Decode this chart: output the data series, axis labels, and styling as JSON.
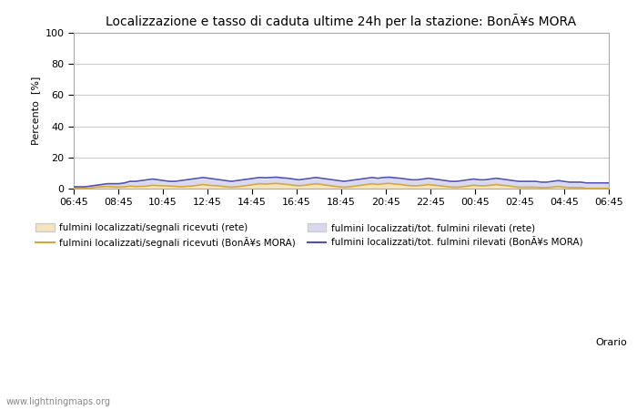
{
  "title": "Localizzazione e tasso di caduta ultime 24h per la stazione: BonÃ¥s MORA",
  "ylabel": "Percento  [%]",
  "xlabel": "Orario",
  "watermark": "www.lightningmaps.org",
  "xtick_labels": [
    "06:45",
    "08:45",
    "10:45",
    "12:45",
    "14:45",
    "16:45",
    "18:45",
    "20:45",
    "22:45",
    "00:45",
    "02:45",
    "04:45",
    "06:45"
  ],
  "ytick_labels": [
    "0",
    "20",
    "40",
    "60",
    "80",
    "100"
  ],
  "ylim": [
    0,
    100
  ],
  "legend": [
    {
      "label": "fulmini localizzati/segnali ricevuti (rete)",
      "color": "#f5e4be",
      "type": "patch"
    },
    {
      "label": "fulmini localizzati/segnali ricevuti (BonÃ¥s MORA)",
      "color": "#d4a840",
      "type": "line"
    },
    {
      "label": "fulmini localizzati/tot. fulmini rilevati (rete)",
      "color": "#d8d8f0",
      "type": "patch"
    },
    {
      "label": "fulmini localizzati/tot. fulmini rilevati (BonÃ¥s MORA)",
      "color": "#5050b8",
      "type": "line"
    }
  ],
  "area_rete_segnali": [
    0,
    0,
    0,
    0.5,
    1,
    1.5,
    2,
    2,
    1.5,
    2,
    2.5,
    2,
    2,
    2.5,
    3,
    3,
    3,
    2.5,
    2,
    1.5,
    2,
    2.5,
    3,
    3.5,
    3,
    2.5,
    2,
    1.5,
    1,
    1.5,
    2,
    2.5,
    3,
    3.5,
    3.5,
    4,
    4,
    3.5,
    3,
    2.5,
    2,
    2.5,
    3,
    3.5,
    3,
    2.5,
    2,
    1.5,
    1,
    1.5,
    2,
    2.5,
    3,
    3.5,
    3,
    3.5,
    4,
    3.5,
    3,
    2.5,
    2,
    2,
    2.5,
    3,
    2.5,
    2,
    1.5,
    1,
    1,
    1.5,
    2,
    2.5,
    2,
    2,
    2.5,
    3,
    2.5,
    2,
    1.5,
    1,
    1,
    1,
    1,
    0.5,
    0.5,
    1,
    1.5,
    1,
    0.5,
    0.5,
    0.5,
    0,
    0,
    0,
    0,
    0
  ],
  "area_rete_tot": [
    1,
    1,
    1,
    1.5,
    2,
    2.5,
    3,
    3,
    3,
    3.5,
    4,
    4,
    4.5,
    5,
    5.5,
    5,
    4.5,
    4,
    4,
    4.5,
    5,
    5.5,
    6,
    6.5,
    6,
    5.5,
    5,
    4.5,
    4,
    4.5,
    5,
    5.5,
    6,
    6.5,
    6,
    6.5,
    7,
    6.5,
    6,
    5.5,
    5,
    5.5,
    6,
    6.5,
    6,
    5.5,
    5,
    4.5,
    4,
    4.5,
    5,
    5.5,
    6,
    6.5,
    6,
    6.5,
    7,
    6.5,
    6,
    5.5,
    5,
    5,
    5.5,
    6,
    5.5,
    5,
    4.5,
    4,
    4,
    4.5,
    5,
    5.5,
    5,
    5,
    5.5,
    6,
    5.5,
    5,
    4.5,
    4,
    4,
    4,
    4,
    3.5,
    3.5,
    4,
    4.5,
    4,
    3.5,
    3.5,
    3.5,
    3,
    3,
    3,
    3,
    3
  ],
  "line_mora_segnali": [
    0,
    0,
    0,
    0.3,
    0.8,
    1,
    1.2,
    1,
    0.8,
    1,
    1.5,
    1.2,
    1.3,
    1.5,
    2,
    1.8,
    1.7,
    1.5,
    1.3,
    1,
    1.3,
    1.5,
    2,
    2.5,
    2,
    1.8,
    1.5,
    1,
    0.8,
    1,
    1.5,
    2,
    2.5,
    3,
    2.8,
    3,
    3.2,
    2.8,
    2.5,
    2,
    1.7,
    2,
    2.5,
    3,
    2.5,
    2,
    1.5,
    1,
    0.7,
    1,
    1.5,
    2,
    2.5,
    3,
    2.5,
    3,
    3.2,
    2.8,
    2.5,
    2,
    1.7,
    1.7,
    2,
    2.5,
    2,
    1.7,
    1.2,
    0.8,
    0.7,
    1,
    1.5,
    2,
    1.7,
    1.7,
    2,
    2.5,
    2,
    1.7,
    1.2,
    0.7,
    0.7,
    0.7,
    0.7,
    0.5,
    0.5,
    0.8,
    1.2,
    0.8,
    0.5,
    0.5,
    0.5,
    0,
    0,
    0,
    0,
    0
  ],
  "line_mora_tot": [
    1,
    1,
    1,
    1.5,
    2,
    2.5,
    3,
    3,
    3,
    3.5,
    4.5,
    4.5,
    5,
    5.5,
    6,
    5.5,
    5,
    4.5,
    4.5,
    5,
    5.5,
    6,
    6.5,
    7,
    6.5,
    6,
    5.5,
    5,
    4.5,
    5,
    5.5,
    6,
    6.5,
    7,
    6.8,
    7,
    7.2,
    6.8,
    6.5,
    6,
    5.5,
    6,
    6.5,
    7,
    6.5,
    6,
    5.5,
    5,
    4.5,
    5,
    5.5,
    6,
    6.5,
    7,
    6.5,
    7,
    7.2,
    6.8,
    6.5,
    6,
    5.5,
    5.5,
    6,
    6.5,
    6,
    5.5,
    5,
    4.5,
    4.5,
    5,
    5.5,
    6,
    5.5,
    5.5,
    6,
    6.5,
    6,
    5.5,
    5,
    4.5,
    4.5,
    4.5,
    4.5,
    4,
    4,
    4.5,
    5,
    4.5,
    4,
    4,
    4,
    3.5,
    3.5,
    3.5,
    3.5,
    3.5
  ]
}
